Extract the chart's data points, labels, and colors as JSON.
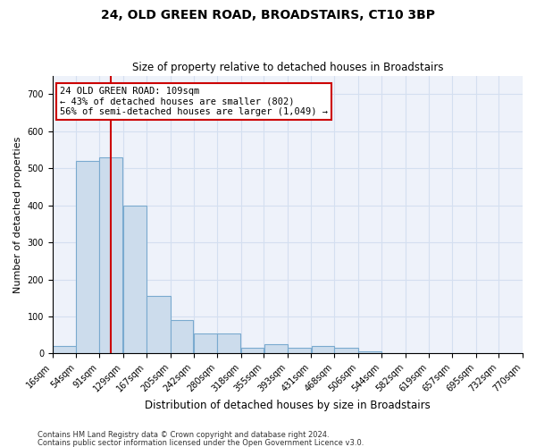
{
  "title": "24, OLD GREEN ROAD, BROADSTAIRS, CT10 3BP",
  "subtitle": "Size of property relative to detached houses in Broadstairs",
  "xlabel": "Distribution of detached houses by size in Broadstairs",
  "ylabel": "Number of detached properties",
  "footnote1": "Contains HM Land Registry data © Crown copyright and database right 2024.",
  "footnote2": "Contains public sector information licensed under the Open Government Licence v3.0.",
  "bin_edges": [
    16,
    54,
    91,
    129,
    167,
    205,
    242,
    280,
    318,
    355,
    393,
    431,
    468,
    506,
    544,
    582,
    619,
    657,
    695,
    732,
    770
  ],
  "bar_heights": [
    20,
    520,
    530,
    400,
    155,
    90,
    55,
    55,
    15,
    25,
    15,
    20,
    15,
    5,
    0,
    0,
    0,
    0,
    0,
    0
  ],
  "bar_color": "#ccdcec",
  "bar_edge_color": "#7aaacf",
  "property_line_x": 109,
  "property_line_color": "#cc0000",
  "annotation_line1": "24 OLD GREEN ROAD: 109sqm",
  "annotation_line2": "← 43% of detached houses are smaller (802)",
  "annotation_line3": "56% of semi-detached houses are larger (1,049) →",
  "annotation_box_color": "#cc0000",
  "ylim": [
    0,
    750
  ],
  "yticks": [
    0,
    100,
    200,
    300,
    400,
    500,
    600,
    700
  ],
  "grid_color": "#d4dff0",
  "background_color": "#eef2fa",
  "fig_width": 6.0,
  "fig_height": 5.0,
  "title_fontsize": 10,
  "subtitle_fontsize": 8.5,
  "ylabel_fontsize": 8,
  "xlabel_fontsize": 8.5,
  "tick_fontsize": 7,
  "footnote_fontsize": 6,
  "annot_fontsize": 7.5
}
